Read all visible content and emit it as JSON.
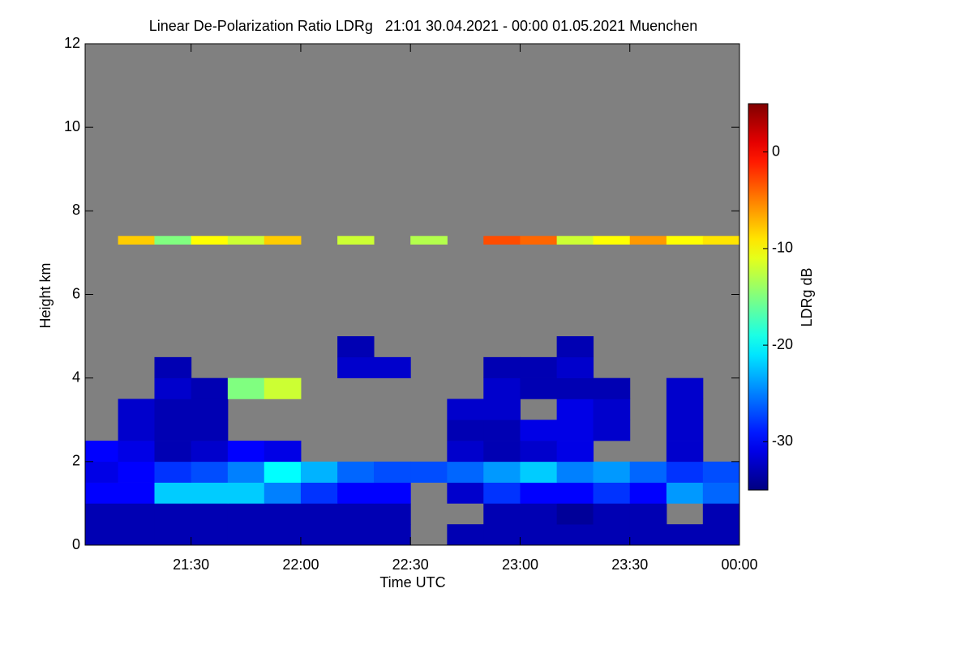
{
  "chart_data": {
    "type": "heatmap",
    "title": "Linear De-Polarization Ratio LDRg   21:01 30.04.2021 - 00:00 01.05.2021 Muenchen",
    "xlabel": "Time UTC",
    "ylabel": "Height km",
    "colorbar_label": "LDRg dB",
    "xlim": [
      21.017,
      24.0
    ],
    "xticks": [
      {
        "value": 21.5,
        "label": "21:30"
      },
      {
        "value": 22.0,
        "label": "22:00"
      },
      {
        "value": 22.5,
        "label": "22:30"
      },
      {
        "value": 23.0,
        "label": "23:00"
      },
      {
        "value": 23.5,
        "label": "23:30"
      },
      {
        "value": 24.0,
        "label": "00:00"
      }
    ],
    "ylim": [
      0,
      12
    ],
    "yticks": [
      0,
      2,
      4,
      6,
      8,
      10,
      12
    ],
    "zlim": [
      -35,
      5
    ],
    "zticks": [
      0,
      -10,
      -20,
      -30
    ],
    "colormap": "jet",
    "missing_color": "#808080",
    "x_bins": [
      21.017,
      21.167,
      21.333,
      21.5,
      21.667,
      21.833,
      22.0,
      22.167,
      22.333,
      22.5,
      22.667,
      22.833,
      23.0,
      23.167,
      23.333,
      23.5,
      23.667,
      23.833,
      24.0
    ],
    "y_bins": [
      0,
      0.5,
      1,
      1.5,
      2,
      2.5,
      3,
      3.5,
      4,
      4.5,
      5,
      7.2,
      7.4
    ],
    "z": [
      [
        -33,
        -33,
        -33,
        -33,
        -33,
        -33,
        -33,
        -33,
        -33,
        null,
        -33,
        -33,
        -33,
        -33,
        -33,
        -33,
        -33,
        -33
      ],
      [
        -33,
        -33,
        -33,
        -33,
        -33,
        -33,
        -33,
        -33,
        -33,
        null,
        null,
        -33,
        -33,
        -34,
        -33,
        -33,
        null,
        -33
      ],
      [
        -30,
        -30,
        -22,
        -22,
        -22,
        -25,
        -28,
        -30,
        -30,
        null,
        -32,
        -28,
        -30,
        -30,
        -28,
        -30,
        -24,
        -26
      ],
      [
        -31,
        -30,
        -28,
        -27,
        -25,
        -20,
        -23,
        -26,
        -27,
        -27,
        -26,
        -24,
        -22,
        -25,
        -24,
        -26,
        -28,
        -27
      ],
      [
        -30,
        -31,
        -33,
        -32,
        -30,
        -31,
        null,
        null,
        null,
        null,
        -32,
        -33,
        -32,
        -31,
        null,
        null,
        -32,
        null
      ],
      [
        null,
        -32,
        -33,
        -33,
        null,
        null,
        null,
        null,
        null,
        null,
        -33,
        -33,
        -31,
        -31,
        -32,
        null,
        -32,
        null
      ],
      [
        null,
        -32,
        -33,
        -33,
        null,
        null,
        null,
        null,
        null,
        null,
        -32,
        -32,
        null,
        -31,
        -32,
        null,
        -32,
        null
      ],
      [
        null,
        null,
        -32,
        -33,
        -15,
        -12,
        null,
        null,
        null,
        null,
        null,
        -32,
        -33,
        -33,
        -33,
        null,
        -32,
        null
      ],
      [
        null,
        null,
        -33,
        null,
        null,
        null,
        null,
        -32,
        -32,
        null,
        null,
        -33,
        -33,
        -32,
        null,
        null,
        null,
        null
      ],
      [
        null,
        null,
        null,
        null,
        null,
        null,
        null,
        -33,
        null,
        null,
        null,
        null,
        null,
        -33,
        null,
        null,
        null,
        null
      ],
      [
        null,
        null,
        null,
        null,
        null,
        null,
        null,
        null,
        null,
        null,
        null,
        null,
        null,
        null,
        null,
        null,
        null,
        null
      ],
      [
        null,
        -8,
        -15,
        -10,
        -12,
        -8,
        null,
        -12,
        null,
        -13,
        null,
        -3,
        -4,
        -12,
        -10,
        -6,
        -10,
        -9
      ]
    ]
  }
}
